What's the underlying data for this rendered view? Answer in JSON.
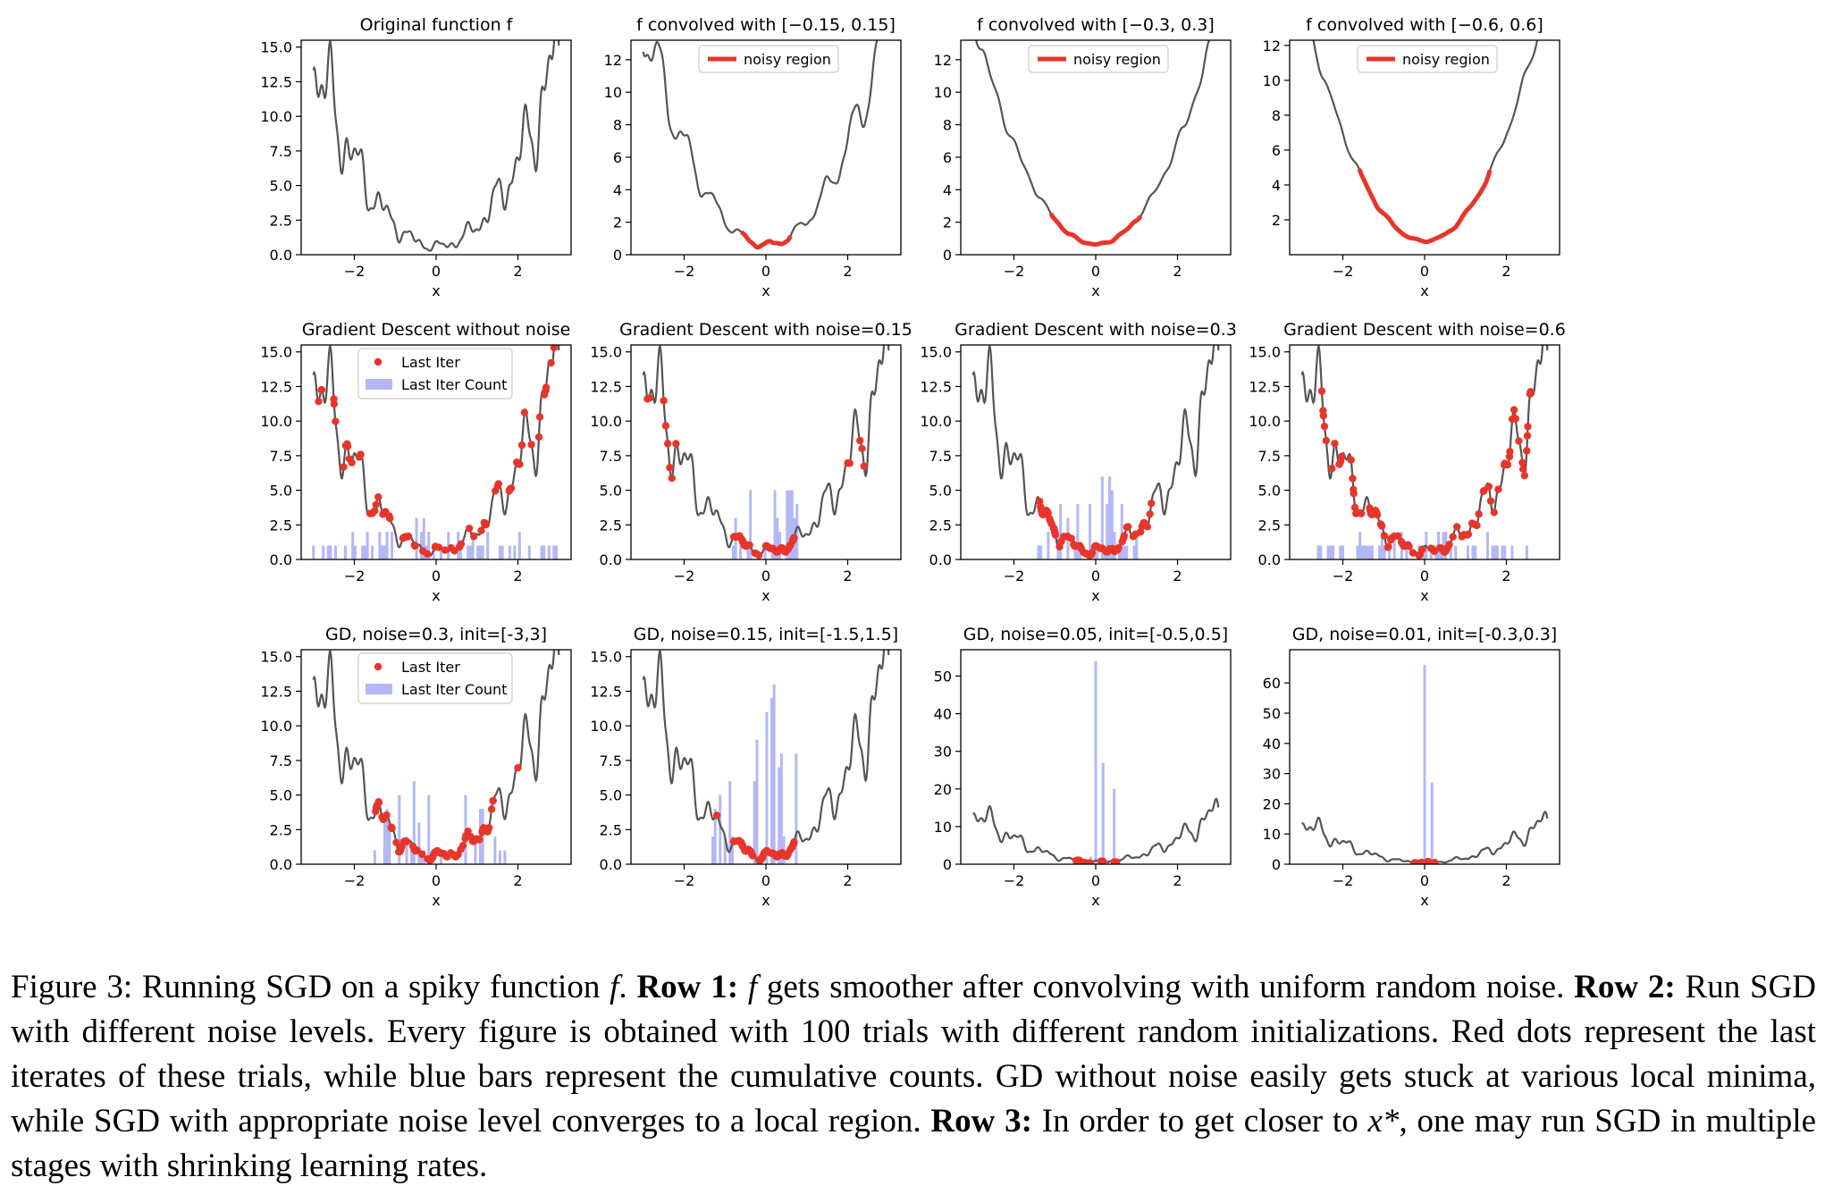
{
  "figure": {
    "colors": {
      "curve": "#555555",
      "red": "#e8352a",
      "blue": "#b3b8f5",
      "axis": "#000000"
    },
    "panels": [
      {
        "title": "Original function f",
        "xlabel": "x",
        "xticks": [
          "−2",
          "0",
          "2"
        ],
        "ymax": 15.5,
        "yticks": [
          "0.0",
          "2.5",
          "5.0",
          "7.5",
          "10.0",
          "12.5",
          "15.0"
        ],
        "yvals": [
          0,
          2.5,
          5,
          7.5,
          10,
          12.5,
          15
        ],
        "curve": "orig",
        "legend": null
      },
      {
        "title": "f convolved with [−0.15, 0.15]",
        "xlabel": "x",
        "xticks": [
          "−2",
          "0",
          "2"
        ],
        "ymax": 13.2,
        "yticks": [
          "0",
          "2",
          "4",
          "6",
          "8",
          "10",
          "12"
        ],
        "yvals": [
          0,
          2,
          4,
          6,
          8,
          10,
          12
        ],
        "curve": "conv",
        "w": 0.15,
        "noisy": [
          -0.6,
          0.6
        ],
        "legend": "noisy"
      },
      {
        "title": "f convolved with [−0.3, 0.3]",
        "xlabel": "x",
        "xticks": [
          "−2",
          "0",
          "2"
        ],
        "ymax": 13.2,
        "yticks": [
          "0",
          "2",
          "4",
          "6",
          "8",
          "10",
          "12"
        ],
        "yvals": [
          0,
          2,
          4,
          6,
          8,
          10,
          12
        ],
        "curve": "conv",
        "w": 0.3,
        "noisy": [
          -1.1,
          1.1
        ],
        "legend": "noisy"
      },
      {
        "title": "f convolved with [−0.6, 0.6]",
        "xlabel": "x",
        "xticks": [
          "−2",
          "0",
          "2"
        ],
        "ymax": 12.3,
        "yticks": [
          "2",
          "4",
          "6",
          "8",
          "10",
          "12"
        ],
        "yvals": [
          2,
          4,
          6,
          8,
          10,
          12
        ],
        "curve": "conv",
        "w": 0.6,
        "noisy": [
          -1.6,
          1.6
        ],
        "legend": "noisy"
      },
      {
        "title": "Gradient Descent without noise",
        "xlabel": "x",
        "xticks": [
          "−2",
          "0",
          "2"
        ],
        "ymax": 15.5,
        "yticks": [
          "0.0",
          "2.5",
          "5.0",
          "7.5",
          "10.0",
          "12.5",
          "15.0"
        ],
        "yvals": [
          0,
          2.5,
          5,
          7.5,
          10,
          12.5,
          15
        ],
        "curve": "orig",
        "legend": "gd",
        "dotRange": [
          -3,
          3
        ],
        "dotCount": 70,
        "barRange": [
          -3,
          3
        ],
        "barMax": 3,
        "seed": 11
      },
      {
        "title": "Gradient Descent with noise=0.15",
        "xlabel": "x",
        "xticks": [
          "−2",
          "0",
          "2"
        ],
        "ymax": 15.5,
        "yticks": [
          "0.0",
          "2.5",
          "5.0",
          "7.5",
          "10.0",
          "12.5",
          "15.0"
        ],
        "yvals": [
          0,
          2.5,
          5,
          7.5,
          10,
          12.5,
          15
        ],
        "curve": "orig",
        "legend": null,
        "dotRange": [
          -0.8,
          0.7
        ],
        "dotCount": 60,
        "extraDots": [
          -2.9,
          -2.85,
          -2.5,
          -2.45,
          -2.4,
          -2.35,
          -2.3,
          -2.2,
          2.0,
          2.05,
          2.3,
          2.35,
          2.4
        ],
        "barRange": [
          -0.8,
          0.8
        ],
        "barMax": 9,
        "seed": 23
      },
      {
        "title": "Gradient Descent with noise=0.3",
        "xlabel": "x",
        "xticks": [
          "−2",
          "0",
          "2"
        ],
        "ymax": 15.5,
        "yticks": [
          "0.0",
          "2.5",
          "5.0",
          "7.5",
          "10.0",
          "12.5",
          "15.0"
        ],
        "yvals": [
          0,
          2.5,
          5,
          7.5,
          10,
          12.5,
          15
        ],
        "curve": "orig",
        "legend": null,
        "dotRange": [
          -1.4,
          1.4
        ],
        "dotCount": 90,
        "barRange": [
          -1.4,
          1.4
        ],
        "barMax": 7,
        "seed": 37
      },
      {
        "title": "Gradient Descent with noise=0.6",
        "xlabel": "x",
        "xticks": [
          "−2",
          "0",
          "2"
        ],
        "ymax": 15.5,
        "yticks": [
          "0.0",
          "2.5",
          "5.0",
          "7.5",
          "10.0",
          "12.5",
          "15.0"
        ],
        "yvals": [
          0,
          2.5,
          5,
          7.5,
          10,
          12.5,
          15
        ],
        "curve": "orig",
        "legend": null,
        "dotRange": [
          -2.6,
          2.6
        ],
        "dotCount": 100,
        "barRange": [
          -2.6,
          2.6
        ],
        "barMax": 3,
        "seed": 41
      },
      {
        "title": "GD, noise=0.3, init=[-3,3]",
        "xlabel": "x",
        "xticks": [
          "−2",
          "0",
          "2"
        ],
        "ymax": 15.5,
        "yticks": [
          "0.0",
          "2.5",
          "5.0",
          "7.5",
          "10.0",
          "12.5",
          "15.0"
        ],
        "yvals": [
          0,
          2.5,
          5,
          7.5,
          10,
          12.5,
          15
        ],
        "curve": "orig",
        "legend": "gd",
        "dotRange": [
          -1.5,
          1.4
        ],
        "dotCount": 90,
        "extraDots": [
          2.0
        ],
        "barRange": [
          -1.5,
          1.9
        ],
        "barMax": 8,
        "seed": 53
      },
      {
        "title": "GD, noise=0.15, init=[-1.5,1.5]",
        "xlabel": "x",
        "xticks": [
          "−2",
          "0",
          "2"
        ],
        "ymax": 15.5,
        "yticks": [
          "0.0",
          "2.5",
          "5.0",
          "7.5",
          "10.0",
          "12.5",
          "15.0"
        ],
        "yvals": [
          0,
          2.5,
          5,
          7.5,
          10,
          12.5,
          15
        ],
        "curve": "orig",
        "legend": null,
        "dotRange": [
          -0.8,
          0.7
        ],
        "dotCount": 70,
        "extraDots": [
          -1.2
        ],
        "barRange": [
          -1.3,
          0.8
        ],
        "barMax": 15,
        "seed": 61
      },
      {
        "title": "GD, noise=0.05, init=[-0.5,0.5]",
        "xlabel": "x",
        "xticks": [
          "−2",
          "0",
          "2"
        ],
        "ymax": 57,
        "yticks": [
          "0",
          "10",
          "20",
          "30",
          "40",
          "50"
        ],
        "yvals": [
          0,
          10,
          20,
          30,
          40,
          50
        ],
        "curve": "orig",
        "legend": null,
        "dotRange": [
          -0.55,
          0.55
        ],
        "dotCount": 12,
        "bars": [
          [
            -0.52,
            1
          ],
          [
            -0.4,
            1
          ],
          [
            -0.12,
            2
          ],
          [
            0,
            54
          ],
          [
            0.05,
            1
          ],
          [
            0.18,
            27
          ],
          [
            0.3,
            1
          ],
          [
            0.45,
            20
          ]
        ]
      },
      {
        "title": "GD, noise=0.01, init=[-0.3,0.3]",
        "xlabel": "x",
        "xticks": [
          "−2",
          "0",
          "2"
        ],
        "ymax": 71,
        "yticks": [
          "0",
          "10",
          "20",
          "30",
          "40",
          "50",
          "60"
        ],
        "yvals": [
          0,
          10,
          20,
          30,
          40,
          50,
          60
        ],
        "curve": "orig",
        "legend": null,
        "dotRange": [
          -0.3,
          0.3
        ],
        "dotCount": 10,
        "bars": [
          [
            -0.25,
            1
          ],
          [
            0,
            66
          ],
          [
            0.18,
            27
          ],
          [
            0.28,
            1
          ]
        ]
      }
    ],
    "legend": {
      "noisy": "noisy region",
      "last_iter": "Last Iter",
      "last_iter_count": "Last Iter Count"
    }
  },
  "caption": {
    "lead": "Figure 3: Running SGD on a spiky function ",
    "f1": "f",
    "p1": ". ",
    "row1_label": "Row 1:",
    "p2": " ",
    "f2": "f",
    "p3": " gets smoother after convolving with uniform random noise. ",
    "row2_label": "Row 2:",
    "p4": " Run SGD with different noise levels. Every figure is obtained with 100 trials with different random initializations. Red dots represent the last iterates of these trials, while blue bars represent the cumulative counts. GD without noise easily gets stuck at various local minima, while SGD with appropriate noise level converges to a local region. ",
    "row3_label": "Row 3:",
    "p5": " In order to get closer to ",
    "xstar": "x*",
    "p6": ", one may run SGD in multiple stages with shrinking learning rates."
  }
}
